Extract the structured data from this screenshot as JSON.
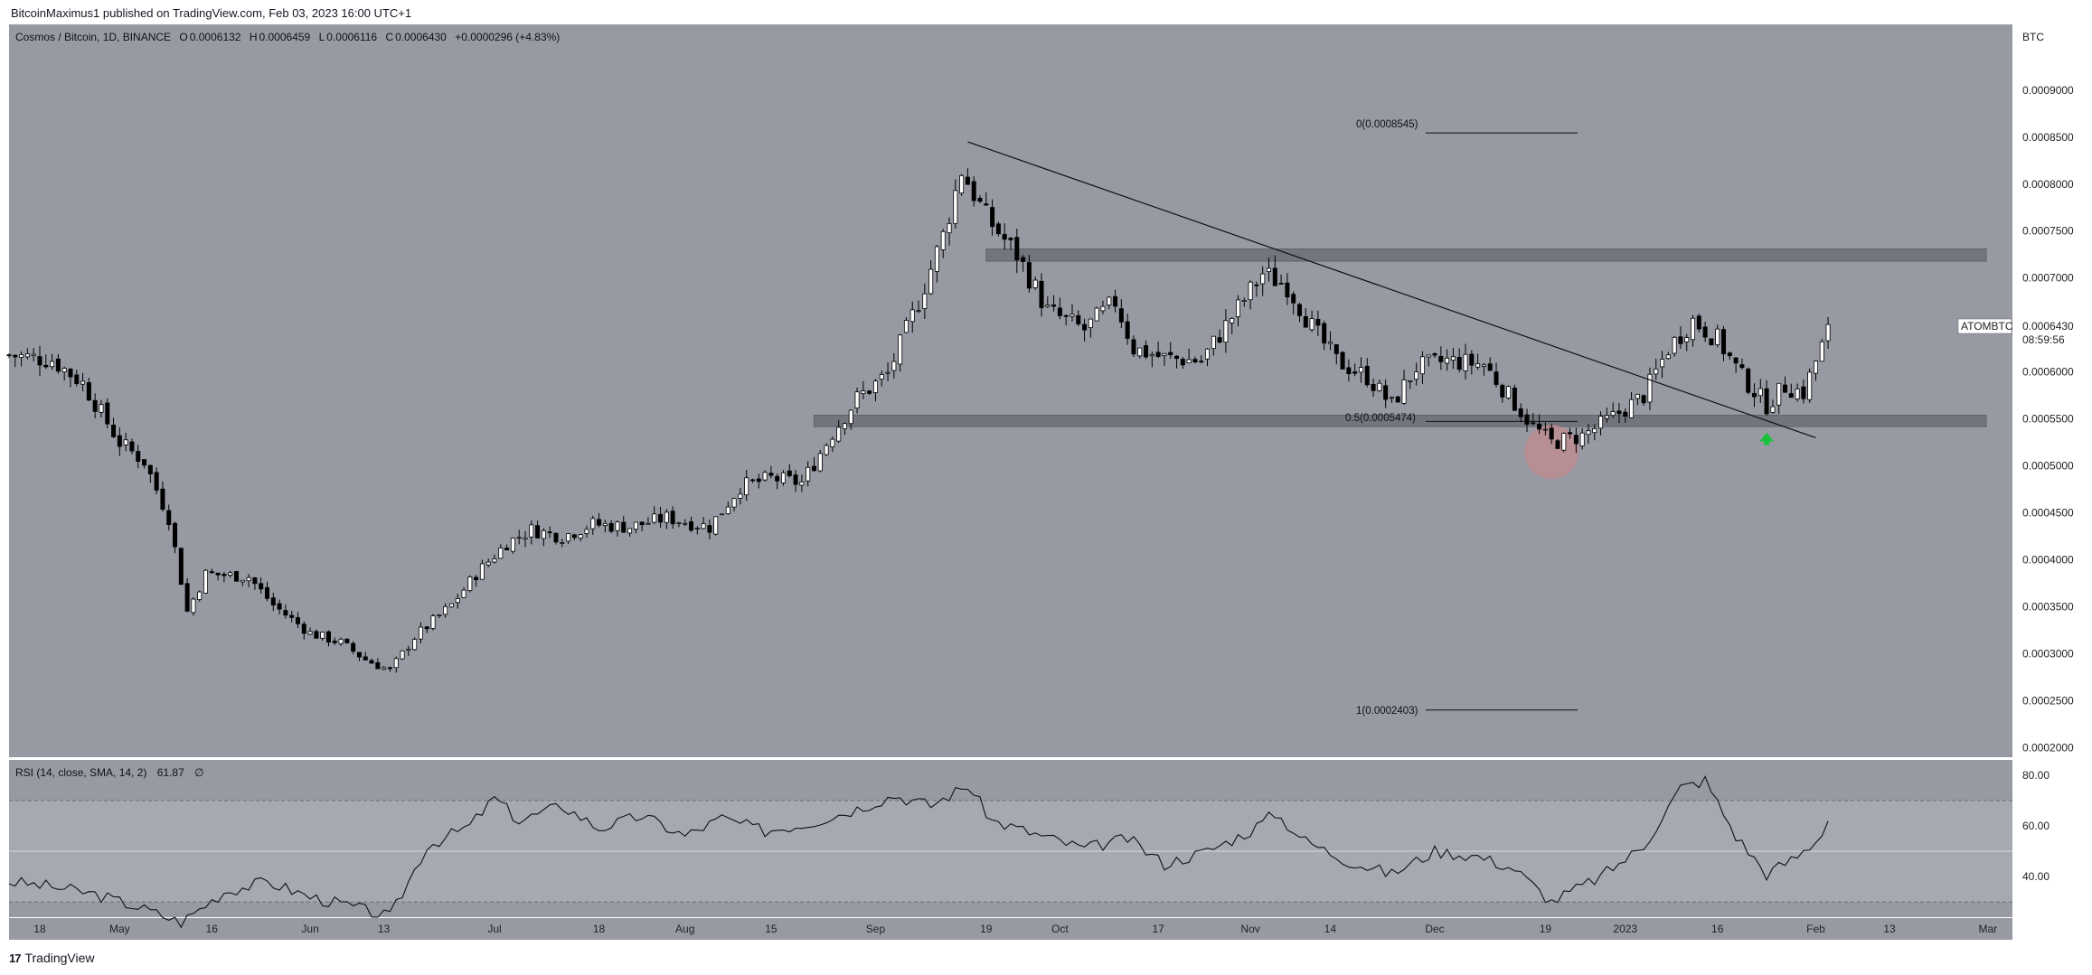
{
  "header": {
    "text": "BitcoinMaximus1 published on TradingView.com, Feb 03, 2023 16:00 UTC+1"
  },
  "footer": {
    "logo_mark": "17",
    "logo_text": "TradingView"
  },
  "colors": {
    "panel_bg": "#979aa3",
    "rsi_band": "#a6a9b1",
    "zone": "#72757e",
    "up_candle": "#ffffff",
    "down_candle": "#000000",
    "highlight_circle": "#c28a8e",
    "arrow": "#19c23a"
  },
  "chart_data": [
    {
      "type": "candlestick",
      "symbol_line": {
        "symbol": "Cosmos / Bitcoin, 1D, BINANCE",
        "o_label": "O",
        "o": "0.0006132",
        "h_label": "H",
        "h": "0.0006459",
        "l_label": "L",
        "l": "0.0006116",
        "c_label": "C",
        "c": "0.0006430",
        "change": "+0.0000296 (+4.83%)"
      },
      "unit_label": "BTC",
      "ylim": [
        0.00019,
        0.00097
      ],
      "y_ticks": [
        "0.0009000",
        "0.0008500",
        "0.0008000",
        "0.0007500",
        "0.0007000",
        "0.0006500",
        "0.0006000",
        "0.0005500",
        "0.0005000",
        "0.0004500",
        "0.0004000",
        "0.0003500",
        "0.0003000",
        "0.0002500",
        "0.0002000"
      ],
      "x_ticks": [
        "18",
        "May",
        "16",
        "Jun",
        "13",
        "Jul",
        "18",
        "Aug",
        "15",
        "Sep",
        "19",
        "Oct",
        "17",
        "Nov",
        "14",
        "Dec",
        "19",
        "2023",
        "16",
        "Feb",
        "13",
        "Mar"
      ],
      "last_price_label": {
        "ticker": "ATOMBTC",
        "price": "0.0006430",
        "countdown": "08:59:56"
      },
      "x_range_days": [
        "2022-04-13",
        "2023-03-05"
      ],
      "keypoints": [
        [
          "2022-04-13",
          0.000618
        ],
        [
          "2022-04-20",
          0.000613
        ],
        [
          "2022-04-25",
          0.000588
        ],
        [
          "2022-05-01",
          0.000525
        ],
        [
          "2022-05-05",
          0.000505
        ],
        [
          "2022-05-09",
          0.000445
        ],
        [
          "2022-05-12",
          0.000345
        ],
        [
          "2022-05-15",
          0.000385
        ],
        [
          "2022-05-18",
          0.000384
        ],
        [
          "2022-05-22",
          0.000382
        ],
        [
          "2022-05-26",
          0.000352
        ],
        [
          "2022-06-01",
          0.000322
        ],
        [
          "2022-06-06",
          0.000312
        ],
        [
          "2022-06-10",
          0.000294
        ],
        [
          "2022-06-14",
          0.000282
        ],
        [
          "2022-06-18",
          0.000318
        ],
        [
          "2022-06-24",
          0.000352
        ],
        [
          "2022-06-28",
          0.000385
        ],
        [
          "2022-07-03",
          0.000418
        ],
        [
          "2022-07-07",
          0.000432
        ],
        [
          "2022-07-12",
          0.000425
        ],
        [
          "2022-07-17",
          0.000438
        ],
        [
          "2022-07-23",
          0.000435
        ],
        [
          "2022-07-29",
          0.000445
        ],
        [
          "2022-08-05",
          0.000435
        ],
        [
          "2022-08-10",
          0.000478
        ],
        [
          "2022-08-15",
          0.000487
        ],
        [
          "2022-08-20",
          0.000482
        ],
        [
          "2022-08-25",
          0.000535
        ],
        [
          "2022-08-29",
          0.000572
        ],
        [
          "2022-09-03",
          0.000598
        ],
        [
          "2022-09-08",
          0.000675
        ],
        [
          "2022-09-12",
          0.000745
        ],
        [
          "2022-09-15",
          0.000815
        ],
        [
          "2022-09-19",
          0.000765
        ],
        [
          "2022-09-24",
          0.000725
        ],
        [
          "2022-09-29",
          0.000665
        ],
        [
          "2022-10-05",
          0.000645
        ],
        [
          "2022-10-10",
          0.000675
        ],
        [
          "2022-10-13",
          0.000625
        ],
        [
          "2022-10-18",
          0.000615
        ],
        [
          "2022-10-24",
          0.000612
        ],
        [
          "2022-10-30",
          0.000668
        ],
        [
          "2022-11-03",
          0.000705
        ],
        [
          "2022-11-07",
          0.000692
        ],
        [
          "2022-11-11",
          0.000648
        ],
        [
          "2022-11-15",
          0.000612
        ],
        [
          "2022-11-20",
          0.000595
        ],
        [
          "2022-11-24",
          0.000565
        ],
        [
          "2022-11-28",
          0.000605
        ],
        [
          "2022-12-03",
          0.000612
        ],
        [
          "2022-12-09",
          0.000608
        ],
        [
          "2022-12-13",
          0.000575
        ],
        [
          "2022-12-17",
          0.000542
        ],
        [
          "2022-12-20",
          0.000525
        ],
        [
          "2022-12-25",
          0.000532
        ],
        [
          "2022-12-30",
          0.000552
        ],
        [
          "2023-01-04",
          0.000575
        ],
        [
          "2023-01-08",
          0.000625
        ],
        [
          "2023-01-12",
          0.000655
        ],
        [
          "2023-01-16",
          0.000635
        ],
        [
          "2023-01-20",
          0.000595
        ],
        [
          "2023-01-24",
          0.000565
        ],
        [
          "2023-01-27",
          0.000585
        ],
        [
          "2023-01-30",
          0.000578
        ],
        [
          "2023-02-01",
          0.000612
        ],
        [
          "2023-02-03",
          0.000643
        ]
      ],
      "annotations": {
        "fib_0": {
          "label": "0(0.0008545)",
          "value": 0.0008545
        },
        "fib_05": {
          "label": "0.5(0.0005474)",
          "value": 0.0005474
        },
        "fib_1": {
          "label": "1(0.0002403)",
          "value": 0.0002403
        },
        "resistance_zone": [
          0.000718,
          0.000731
        ],
        "support_zone": [
          0.000542,
          0.000554
        ],
        "trendline": [
          [
            "2022-09-16",
            0.000845
          ],
          [
            "2023-02-01",
            0.00053
          ]
        ],
        "circle_at": [
          "2022-12-20",
          0.000515
        ],
        "arrow_at": [
          "2023-01-24",
          0.000528
        ]
      }
    },
    {
      "type": "line",
      "title": "RSI (14, close, SMA, 14, 2)",
      "value_label": "61.87",
      "extra_label": "∅",
      "ylim": [
        24,
        86
      ],
      "y_ticks": [
        "80.00",
        "60.00",
        "40.00"
      ],
      "band": [
        30,
        70
      ],
      "midline": 50,
      "keypoints": [
        [
          "2022-04-13",
          38
        ],
        [
          "2022-04-20",
          36
        ],
        [
          "2022-04-27",
          33
        ],
        [
          "2022-05-04",
          28
        ],
        [
          "2022-05-11",
          22
        ],
        [
          "2022-05-18",
          34
        ],
        [
          "2022-05-25",
          38
        ],
        [
          "2022-06-01",
          32
        ],
        [
          "2022-06-08",
          28
        ],
        [
          "2022-06-14",
          24
        ],
        [
          "2022-06-20",
          52
        ],
        [
          "2022-06-27",
          60
        ],
        [
          "2022-07-01",
          71
        ],
        [
          "2022-07-05",
          62
        ],
        [
          "2022-07-12",
          68
        ],
        [
          "2022-07-18",
          59
        ],
        [
          "2022-07-25",
          64
        ],
        [
          "2022-08-01",
          56
        ],
        [
          "2022-08-07",
          63
        ],
        [
          "2022-08-14",
          58
        ],
        [
          "2022-08-21",
          61
        ],
        [
          "2022-08-28",
          66
        ],
        [
          "2022-09-04",
          72
        ],
        [
          "2022-09-10",
          68
        ],
        [
          "2022-09-16",
          76
        ],
        [
          "2022-09-20",
          62
        ],
        [
          "2022-09-28",
          56
        ],
        [
          "2022-10-05",
          51
        ],
        [
          "2022-10-12",
          55
        ],
        [
          "2022-10-18",
          45
        ],
        [
          "2022-10-25",
          50
        ],
        [
          "2022-11-01",
          58
        ],
        [
          "2022-11-05",
          65
        ],
        [
          "2022-11-10",
          54
        ],
        [
          "2022-11-17",
          46
        ],
        [
          "2022-11-24",
          41
        ],
        [
          "2022-12-01",
          50
        ],
        [
          "2022-12-08",
          48
        ],
        [
          "2022-12-14",
          43
        ],
        [
          "2022-12-20",
          30
        ],
        [
          "2022-12-28",
          40
        ],
        [
          "2023-01-04",
          52
        ],
        [
          "2023-01-10",
          75
        ],
        [
          "2023-01-14",
          78
        ],
        [
          "2023-01-19",
          56
        ],
        [
          "2023-01-24",
          41
        ],
        [
          "2023-01-29",
          48
        ],
        [
          "2023-02-01",
          54
        ],
        [
          "2023-02-03",
          61.87
        ]
      ]
    }
  ]
}
